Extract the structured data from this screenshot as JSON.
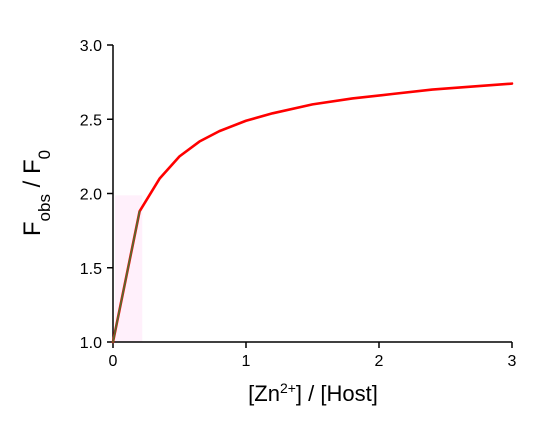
{
  "chart_data": {
    "type": "line",
    "xlabel": {
      "prefix": "[Zn",
      "superscript": "2+",
      "suffix": "] / [Host]"
    },
    "ylabel": {
      "main": "F",
      "main_sub": "obs",
      "sep": " / F",
      "sep_sub": "0"
    },
    "xlim": [
      0,
      3
    ],
    "ylim": [
      1.0,
      3.0
    ],
    "x_ticks": [
      0,
      1,
      2,
      3
    ],
    "x_tick_labels": [
      "0",
      "1",
      "2",
      "3"
    ],
    "y_ticks": [
      1.0,
      1.5,
      2.0,
      2.5,
      3.0
    ],
    "y_tick_labels": [
      "1.0",
      "1.5",
      "2.0",
      "2.5",
      "3.0"
    ],
    "grid": false,
    "legend": "none",
    "series": [
      {
        "color": "#ff0000",
        "x": [
          0,
          0.1,
          0.2,
          0.35,
          0.5,
          0.65,
          0.8,
          1.0,
          1.2,
          1.5,
          1.8,
          2.1,
          2.4,
          2.7,
          3.0
        ],
        "y": [
          1.0,
          1.44,
          1.88,
          2.1,
          2.25,
          2.35,
          2.42,
          2.49,
          2.54,
          2.6,
          2.64,
          2.67,
          2.7,
          2.72,
          2.74
        ]
      },
      {
        "color": "#556b2f",
        "x": [
          0,
          0.1,
          0.2
        ],
        "y": [
          1.0,
          1.44,
          1.88
        ]
      }
    ]
  }
}
